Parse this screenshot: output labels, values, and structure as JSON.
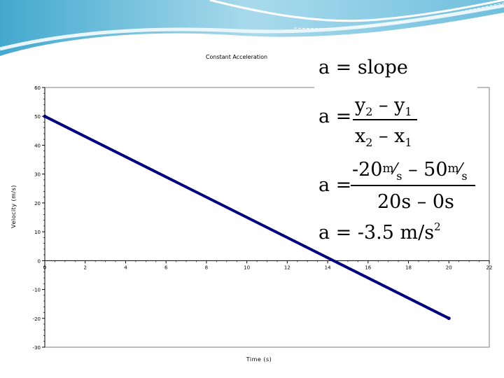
{
  "chart_data": {
    "type": "line",
    "title": "Constant Acceleration",
    "xlabel": "Time (s)",
    "ylabel": "Velocity (m/s)",
    "xlim": [
      0,
      22
    ],
    "ylim": [
      -30,
      60
    ],
    "x_ticks": [
      "0",
      "2",
      "4",
      "6",
      "8",
      "10",
      "12",
      "14",
      "16",
      "18",
      "20",
      "22"
    ],
    "y_ticks": [
      "-30",
      "-20",
      "-10",
      "0",
      "10",
      "20",
      "30",
      "40",
      "50",
      "60"
    ],
    "grid": false,
    "legend": "none",
    "series": [
      {
        "color": "#000080",
        "x": [
          0,
          20
        ],
        "y": [
          50,
          -20
        ]
      }
    ]
  },
  "formulas": {
    "eq1_lhs": "a =",
    "eq1_rhs": "slope",
    "eq2_lhs": "a =",
    "eq2_num_y2": "y",
    "eq2_num_sub2": "2",
    "eq2_num_minus": " – y",
    "eq2_num_sub1": "1",
    "eq2_den_x2": "x",
    "eq2_den_sub2": "2",
    "eq2_den_minus": " – x",
    "eq2_den_sub1": "1",
    "eq3_lhs": "a =",
    "eq3_num_v1": "-20",
    "eq3_num_unit1_m": "m",
    "eq3_num_unit1_s": "s",
    "eq3_num_minus": " – 50",
    "eq3_num_unit2_m": "m",
    "eq3_num_unit2_s": "s",
    "eq3_den": "20s – 0s",
    "eq4_text": "a = -3.5 m/s",
    "eq4_exp": "2"
  },
  "colors": {
    "series_line": "#000080",
    "header_wave_light": "#d6eef7",
    "header_wave_mid": "#8fcfe6",
    "header_wave_dark": "#2e9fc8"
  }
}
